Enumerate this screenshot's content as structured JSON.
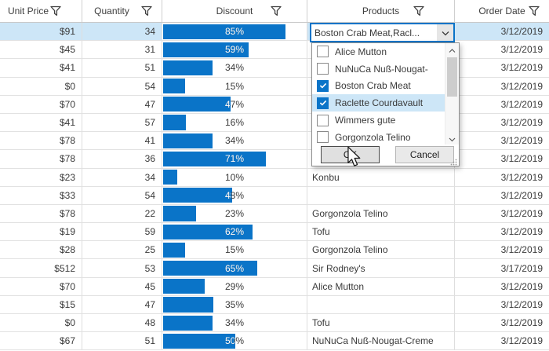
{
  "grid": {
    "columns": [
      {
        "key": "unit_price",
        "label": "Unit Price",
        "align": "right"
      },
      {
        "key": "quantity",
        "label": "Quantity",
        "align": "right"
      },
      {
        "key": "discount",
        "label": "Discount",
        "align": "center",
        "type": "data-bar"
      },
      {
        "key": "products",
        "label": "Products",
        "align": "left"
      },
      {
        "key": "order_date",
        "label": "Order Date",
        "align": "right"
      }
    ],
    "rows": [
      {
        "unit_price": "$91",
        "quantity": "34",
        "discount_pct": 85,
        "product": null,
        "order_date": "3/12/2019",
        "selected": true,
        "has_editor": true
      },
      {
        "unit_price": "$45",
        "quantity": "31",
        "discount_pct": 59,
        "product": null,
        "order_date": "3/12/2019"
      },
      {
        "unit_price": "$41",
        "quantity": "51",
        "discount_pct": 34,
        "product": null,
        "order_date": "3/12/2019"
      },
      {
        "unit_price": "$0",
        "quantity": "54",
        "discount_pct": 15,
        "product": null,
        "order_date": "3/12/2019"
      },
      {
        "unit_price": "$70",
        "quantity": "47",
        "discount_pct": 47,
        "product": null,
        "order_date": "3/12/2019"
      },
      {
        "unit_price": "$41",
        "quantity": "57",
        "discount_pct": 16,
        "product": null,
        "order_date": "3/12/2019"
      },
      {
        "unit_price": "$78",
        "quantity": "41",
        "discount_pct": 34,
        "product": null,
        "order_date": "3/12/2019"
      },
      {
        "unit_price": "$78",
        "quantity": "36",
        "discount_pct": 71,
        "product": null,
        "order_date": "3/12/2019"
      },
      {
        "unit_price": "$23",
        "quantity": "34",
        "discount_pct": 10,
        "product": "Konbu",
        "order_date": "3/12/2019"
      },
      {
        "unit_price": "$33",
        "quantity": "54",
        "discount_pct": 48,
        "product": "",
        "order_date": "3/12/2019"
      },
      {
        "unit_price": "$78",
        "quantity": "22",
        "discount_pct": 23,
        "product": "Gorgonzola Telino",
        "order_date": "3/12/2019"
      },
      {
        "unit_price": "$19",
        "quantity": "59",
        "discount_pct": 62,
        "product": "Tofu",
        "order_date": "3/12/2019"
      },
      {
        "unit_price": "$28",
        "quantity": "25",
        "discount_pct": 15,
        "product": "Gorgonzola Telino",
        "order_date": "3/12/2019"
      },
      {
        "unit_price": "$512",
        "quantity": "53",
        "discount_pct": 65,
        "product": "Sir Rodney's",
        "order_date": "3/17/2019"
      },
      {
        "unit_price": "$70",
        "quantity": "45",
        "discount_pct": 29,
        "product": "Alice Mutton",
        "order_date": "3/12/2019"
      },
      {
        "unit_price": "$15",
        "quantity": "47",
        "discount_pct": 35,
        "product": "",
        "order_date": "3/12/2019"
      },
      {
        "unit_price": "$0",
        "quantity": "48",
        "discount_pct": 34,
        "product": "Tofu",
        "order_date": "3/12/2019"
      },
      {
        "unit_price": "$67",
        "quantity": "51",
        "discount_pct": 50,
        "product": "NuNuCa Nuß-Nougat-Creme",
        "order_date": "3/12/2019"
      }
    ]
  },
  "editor": {
    "value": "Boston Crab Meat,Racl...",
    "icon": "chevron-down-icon"
  },
  "dropdown": {
    "items": [
      {
        "label": "Alice Mutton",
        "checked": false
      },
      {
        "label": "NuNuCa Nuß-Nougat-",
        "checked": false
      },
      {
        "label": "Boston Crab Meat",
        "checked": true
      },
      {
        "label": "Raclette Courdavault",
        "checked": true,
        "highlighted": true
      },
      {
        "label": "Wimmers gute",
        "checked": false
      },
      {
        "label": "Gorgonzola Telino",
        "checked": false
      }
    ],
    "ok_label": "OK",
    "cancel_label": "Cancel",
    "scrollbar": {
      "up_icon": "chevron-up-icon",
      "down_icon": "chevron-down-icon"
    }
  },
  "icons": {
    "header_filter": "funnel-filter-icon",
    "checked_item": "checkmark-icon"
  },
  "colors": {
    "accent": "#0a74c8",
    "selection": "#cde6f7",
    "text": "#3a3a3a",
    "gridline": "#dedede",
    "bar_text_inside": "#ffffff",
    "popup_border": "#8f8f8f",
    "button_face": "#e5e5e5"
  }
}
